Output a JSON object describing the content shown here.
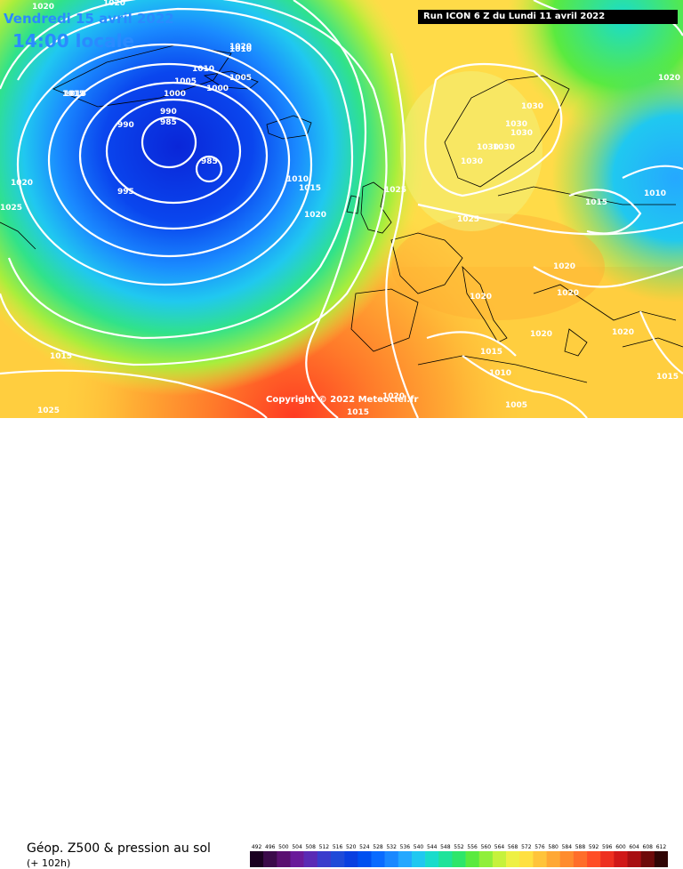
{
  "header": {
    "date": "Vendredi 15 avril 2022",
    "time": "14:00 locale",
    "run": "Run ICON 6 Z du Lundi 11 avril 2022"
  },
  "copyright": "Copyright © 2022 Meteociel.fr",
  "footer": {
    "caption_title": "Géop. Z500 & pression au sol",
    "caption_sub": "(+ 102h)"
  },
  "isobar_labels": [
    {
      "text": "1020"
    },
    {
      "text": "1015"
    },
    {
      "text": "1010"
    },
    {
      "text": "1005"
    },
    {
      "text": "1000"
    },
    {
      "text": "1020"
    },
    {
      "text": "1010"
    },
    {
      "text": "1000"
    },
    {
      "text": "1005"
    },
    {
      "text": "990"
    },
    {
      "text": "990"
    },
    {
      "text": "985"
    },
    {
      "text": "985"
    },
    {
      "text": "995"
    },
    {
      "text": "1015"
    },
    {
      "text": "1020"
    },
    {
      "text": "1025"
    },
    {
      "text": "1015"
    },
    {
      "text": "1025"
    },
    {
      "text": "1010"
    },
    {
      "text": "1015"
    },
    {
      "text": "1020"
    },
    {
      "text": "1025"
    },
    {
      "text": "1025"
    },
    {
      "text": "1030"
    },
    {
      "text": "1030"
    },
    {
      "text": "1030"
    },
    {
      "text": "1030"
    },
    {
      "text": "1030"
    },
    {
      "text": "1030"
    },
    {
      "text": "1020"
    },
    {
      "text": "1010"
    },
    {
      "text": "1015"
    },
    {
      "text": "1020"
    },
    {
      "text": "1020"
    },
    {
      "text": "1020"
    },
    {
      "text": "1020"
    },
    {
      "text": "1020"
    },
    {
      "text": "1015"
    },
    {
      "text": "1010"
    },
    {
      "text": "1005"
    },
    {
      "text": "1020"
    },
    {
      "text": "1015"
    },
    {
      "text": "1015"
    },
    {
      "text": "1020"
    }
  ],
  "legend": {
    "ticks": [
      "492",
      "496",
      "500",
      "504",
      "508",
      "512",
      "516",
      "520",
      "524",
      "528",
      "532",
      "536",
      "540",
      "544",
      "548",
      "552",
      "556",
      "560",
      "564",
      "568",
      "572",
      "576",
      "580",
      "584",
      "588",
      "592",
      "596",
      "600",
      "604",
      "608",
      "612"
    ],
    "colors": [
      "#1a0020",
      "#3b0a4a",
      "#5a1070",
      "#6a1a9a",
      "#5a2ab5",
      "#3a3ccc",
      "#1f4ad8",
      "#0a3fe0",
      "#0050f0",
      "#0a6bff",
      "#1b88ff",
      "#25a8ff",
      "#20c8f0",
      "#19dccb",
      "#1fe39a",
      "#2ee66a",
      "#5aea3f",
      "#90ef3a",
      "#c6f23c",
      "#eef044",
      "#ffe040",
      "#ffc43a",
      "#ffa834",
      "#ff8c2e",
      "#ff6e2a",
      "#ff4e26",
      "#ee3020",
      "#d01818",
      "#a80f12",
      "#6e0a0a",
      "#300505"
    ]
  }
}
